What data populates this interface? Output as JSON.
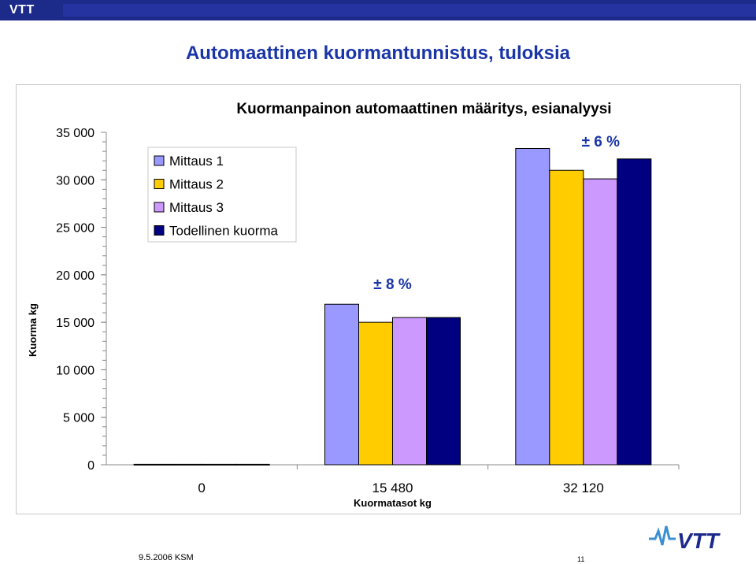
{
  "header": {
    "brand": "VTT"
  },
  "slide": {
    "title": "Automaattinen kuormantunnistus, tuloksia"
  },
  "colors": {
    "header_bg": "#1c2a8a",
    "title": "#1a35a8",
    "annotation": "#1a35a8",
    "series": [
      "#9999ff",
      "#ffcc00",
      "#cc99ff",
      "#000080"
    ]
  },
  "chart_data": {
    "type": "bar",
    "title": "Kuormanpainon automaattinen määritys, esianalyysi",
    "xlabel": "Kuormatasot kg",
    "ylabel": "Kuorma kg",
    "categories": [
      "0",
      "15 480",
      "32 120"
    ],
    "ylim": [
      0,
      35000
    ],
    "yticks": [
      0,
      5000,
      10000,
      15000,
      20000,
      25000,
      30000,
      35000
    ],
    "ytick_labels": [
      "0",
      "5 000",
      "10 000",
      "15 000",
      "20 000",
      "25 000",
      "30 000",
      "35 000"
    ],
    "series": [
      {
        "name": "Mittaus 1",
        "values": [
          50,
          16900,
          33300
        ]
      },
      {
        "name": "Mittaus 2",
        "values": [
          50,
          15000,
          31000
        ]
      },
      {
        "name": "Mittaus 3",
        "values": [
          50,
          15500,
          30100
        ]
      },
      {
        "name": "Todellinen kuorma",
        "values": [
          50,
          15500,
          32200
        ]
      }
    ],
    "annotations": [
      {
        "text": "± 8 %",
        "category": 1
      },
      {
        "text": "± 6 %",
        "category": 2
      }
    ],
    "legend": "top-left",
    "grid": false
  },
  "footer": {
    "date": "9.5.2006  KSM",
    "page": "11"
  },
  "logo": {
    "icon": "vtt-logo-icon",
    "text": "VTT"
  }
}
